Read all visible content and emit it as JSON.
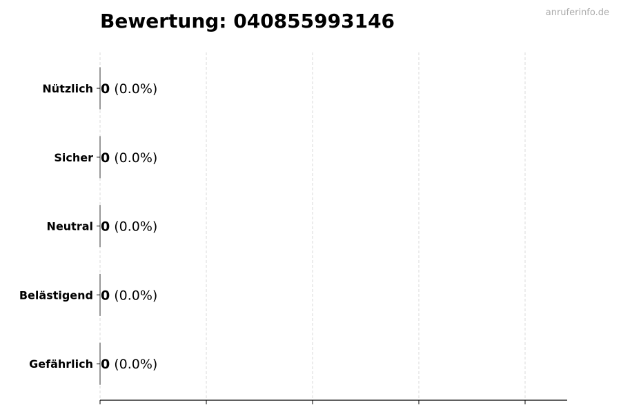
{
  "chart_data": {
    "type": "bar",
    "orientation": "horizontal",
    "title": "Bewertung: 040855993146",
    "watermark": "anruferinfo.de",
    "categories": [
      "Nützlich",
      "Sicher",
      "Neutral",
      "Belästigend",
      "Gefährlich"
    ],
    "values": [
      0,
      0,
      0,
      0,
      0
    ],
    "data_labels": [
      {
        "count": "0",
        "percent": "(0.0%)"
      },
      {
        "count": "0",
        "percent": "(0.0%)"
      },
      {
        "count": "0",
        "percent": "(0.0%)"
      },
      {
        "count": "0",
        "percent": "(0.0%)"
      },
      {
        "count": "0",
        "percent": "(0.0%)"
      }
    ],
    "xlabel": "",
    "ylabel": "",
    "x_tick_labels_shown": false,
    "grid": "vertical dashed",
    "colors": {
      "grid": "#d9d9d9",
      "bar_edge": "#333333",
      "watermark": "#aaaaaa"
    }
  }
}
